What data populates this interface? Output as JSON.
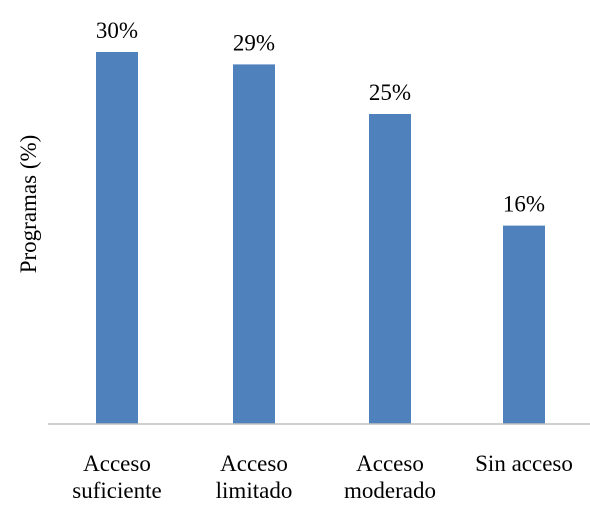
{
  "chart_data": {
    "type": "bar",
    "ylabel": "Programas  (%)",
    "categories": [
      [
        "Acceso",
        "suficiente"
      ],
      [
        "Acceso",
        "limitado"
      ],
      [
        "Acceso",
        "moderado"
      ],
      [
        "Sin acceso"
      ]
    ],
    "values": [
      30,
      29,
      25,
      16
    ],
    "data_labels": [
      "30%",
      "29%",
      "25%",
      "16%"
    ],
    "ylim": [
      0,
      30
    ],
    "grid": false,
    "legend": "none",
    "bar_color": "#4F81BD",
    "axis_color": "#BFBFBF"
  }
}
